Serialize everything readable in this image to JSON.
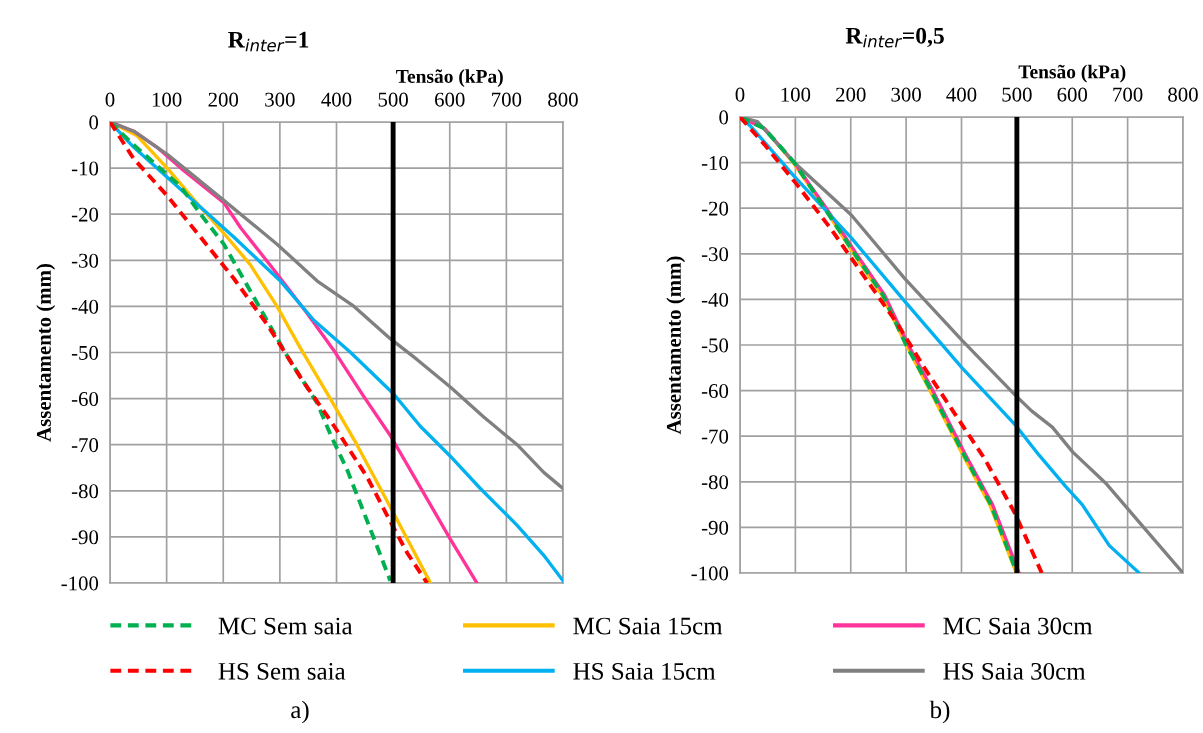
{
  "chart_data": [
    {
      "type": "line",
      "title": "R$_{inter}$=1",
      "xlabel": "Tensão (kPa)",
      "ylabel": "Assentamento (mm)",
      "xlim": [
        0,
        800
      ],
      "xticks": [
        0,
        100,
        200,
        300,
        400,
        500,
        600,
        700,
        800
      ],
      "ylim": [
        -100,
        0
      ],
      "yticks": [
        -100,
        -90,
        -80,
        -70,
        -60,
        -50,
        -40,
        -30,
        -20,
        -10,
        0
      ],
      "grid": true,
      "legend": "bottom",
      "annotations": [
        "a)"
      ],
      "ref_lines": [
        {
          "axis": "x",
          "value": 500,
          "color": "#000000"
        }
      ],
      "series": [
        {
          "name": "MC Sem saia",
          "color": "#00b050",
          "line_style": "dashed",
          "x": [
            0,
            42,
            125,
            160,
            201,
            254,
            284,
            314,
            366,
            390,
            419,
            454,
            495
          ],
          "values": [
            0,
            -5,
            -14,
            -20,
            -26.5,
            -38,
            -44.5,
            -51,
            -61,
            -68,
            -75.5,
            -86.5,
            -99.5
          ]
        },
        {
          "name": "MC Saia 15cm",
          "color": "#ffc000",
          "line_style": "solid",
          "x": [
            0,
            48,
            101,
            160,
            207,
            248,
            295,
            336,
            389,
            436,
            495,
            566
          ],
          "values": [
            0,
            -3,
            -10,
            -18.5,
            -25,
            -31,
            -40,
            -49,
            -60,
            -70,
            -83.5,
            -100
          ]
        },
        {
          "name": "MC Saia 30cm",
          "color": "#ff3399",
          "line_style": "solid",
          "x": [
            0,
            42,
            83,
            130,
            201,
            231,
            289,
            348,
            395,
            448,
            495,
            554,
            601,
            648
          ],
          "values": [
            0,
            -2,
            -5.5,
            -10.5,
            -17.5,
            -23,
            -32,
            -41.5,
            -49.5,
            -59.5,
            -68,
            -80.5,
            -90.5,
            -100
          ]
        },
        {
          "name": "HS Sem saia",
          "color": "#ff0000",
          "line_style": "dashed",
          "x": [
            0,
            42,
            101,
            160,
            219,
            278,
            337,
            396,
            454,
            490,
            525,
            560
          ],
          "values": [
            0,
            -8,
            -16,
            -25,
            -34,
            -44,
            -55.5,
            -66,
            -77,
            -85.5,
            -93.5,
            -100
          ]
        },
        {
          "name": "HS Saia 15cm",
          "color": "#00b0f0",
          "line_style": "solid",
          "x": [
            0,
            42,
            101,
            160,
            219,
            301,
            360,
            425,
            501,
            548,
            601,
            654,
            719,
            766,
            800
          ],
          "values": [
            0,
            -5.5,
            -12,
            -18.5,
            -25,
            -34.5,
            -43,
            -50,
            -59,
            -66,
            -72.5,
            -79.5,
            -87.5,
            -94,
            -99.5
          ]
        },
        {
          "name": "HS Saia 30cm",
          "color": "#808080",
          "line_style": "solid",
          "x": [
            0,
            42,
            101,
            136,
            201,
            295,
            366,
            431,
            495,
            542,
            601,
            660,
            719,
            766,
            800
          ],
          "values": [
            0,
            -2,
            -7,
            -10.5,
            -17,
            -26.5,
            -34.5,
            -40,
            -47,
            -51.5,
            -57.5,
            -64,
            -70,
            -76,
            -79.5
          ]
        }
      ]
    },
    {
      "type": "line",
      "title": "R$_{inter}$=0,5",
      "xlabel": "Tensão (kPa)",
      "ylabel": "Assentamento (mm)",
      "xlim": [
        0,
        800
      ],
      "xticks": [
        0,
        100,
        200,
        300,
        400,
        500,
        600,
        700,
        800
      ],
      "ylim": [
        -100,
        0
      ],
      "yticks": [
        -100,
        -90,
        -80,
        -70,
        -60,
        -50,
        -40,
        -30,
        -20,
        -10,
        0
      ],
      "grid": true,
      "annotations": [
        "b)"
      ],
      "ref_lines": [
        {
          "axis": "x",
          "value": 500,
          "color": "#000000"
        }
      ],
      "series": [
        {
          "color": "#00b050",
          "line_style": "dashed",
          "x": [
            0,
            44,
            98,
            150,
            210,
            258,
            300,
            343,
            404,
            453,
            500
          ],
          "values": [
            0,
            -2.5,
            -10,
            -19.5,
            -30.5,
            -39,
            -50,
            -59.5,
            -74,
            -85,
            -100
          ]
        },
        {
          "color": "#ffc000",
          "line_style": "solid",
          "x": [
            0,
            44,
            96,
            150,
            208,
            256,
            300,
            341,
            402,
            451,
            499
          ],
          "values": [
            0,
            -2.5,
            -10,
            -19.5,
            -30.5,
            -39,
            -50,
            -59.5,
            -74,
            -85,
            -100
          ]
        },
        {
          "color": "#ff3399",
          "line_style": "solid",
          "x": [
            0,
            44,
            98,
            153,
            213,
            261,
            304,
            346,
            407,
            456,
            504
          ],
          "values": [
            0,
            -2.5,
            -10,
            -19.5,
            -30.5,
            -39,
            -50,
            -59.5,
            -74,
            -85,
            -100
          ]
        },
        {
          "color": "#ff0000",
          "line_style": "dashed",
          "x": [
            0,
            44,
            104,
            164,
            236,
            285,
            333,
            382,
            442,
            497,
            545
          ],
          "values": [
            0,
            -6,
            -15,
            -24.5,
            -37,
            -45.5,
            -55,
            -64,
            -75,
            -87,
            -100
          ]
        },
        {
          "color": "#00b0f0",
          "line_style": "solid",
          "x": [
            0,
            19,
            98,
            201,
            298,
            401,
            497,
            539,
            588,
            618,
            667,
            721
          ],
          "values": [
            0,
            -2,
            -13,
            -26.5,
            -40.5,
            -55,
            -67.5,
            -74,
            -81,
            -85,
            -94,
            -100
          ]
        },
        {
          "color": "#808080",
          "line_style": "solid",
          "x": [
            0,
            31.5,
            98,
            201,
            298,
            401,
            497,
            527,
            564,
            601,
            662,
            722,
            800
          ],
          "values": [
            0,
            -1,
            -10,
            -21.5,
            -35.5,
            -49,
            -61,
            -64.5,
            -68,
            -73.5,
            -80.5,
            -89,
            -100
          ]
        }
      ]
    }
  ]
}
